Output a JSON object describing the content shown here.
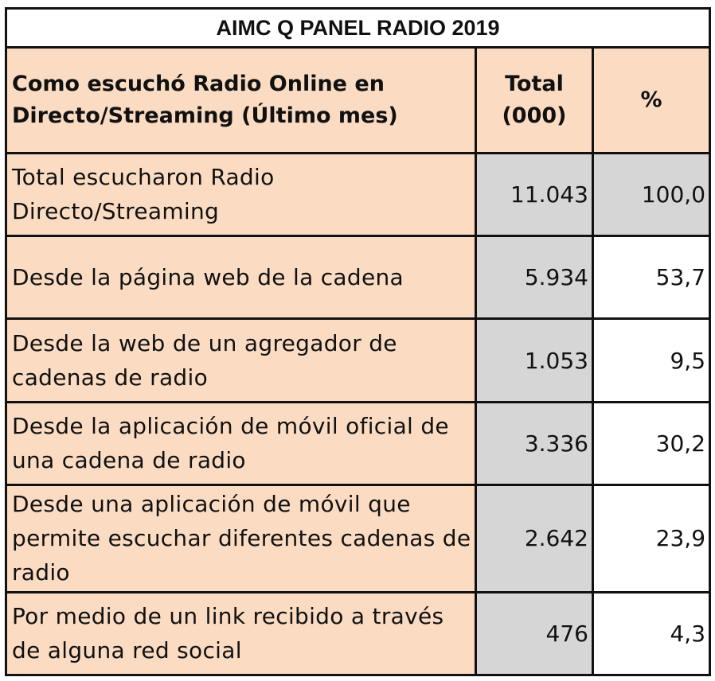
{
  "title": "AIMC Q PANEL RADIO 2019",
  "header": {
    "label": "Como escuchó Radio Online en Directo/Streaming (Último mes)",
    "total": "Total (000)",
    "percent": "%"
  },
  "rows": [
    {
      "label": "Total escucharon Radio Directo/Streaming",
      "total": "11.043",
      "percent": "100,0"
    },
    {
      "label": "Desde la página web de la cadena",
      "total": "5.934",
      "percent": "53,7"
    },
    {
      "label": "Desde la web de un agregador de cadenas de radio",
      "total": "1.053",
      "percent": "9,5"
    },
    {
      "label": "Desde la aplicación de móvil oficial de una cadena de radio",
      "total": "3.336",
      "percent": "30,2"
    },
    {
      "label": "Desde una aplicación de móvil que permite escuchar diferentes cadenas de radio",
      "total": "2.642",
      "percent": "23,9"
    },
    {
      "label": "Por medio de un link recibido a través de alguna red social",
      "total": "476",
      "percent": "4,3"
    }
  ],
  "colors": {
    "header_bg": "#fbdcc3",
    "value_bg": "#d6d6d6",
    "border": "#111111"
  }
}
